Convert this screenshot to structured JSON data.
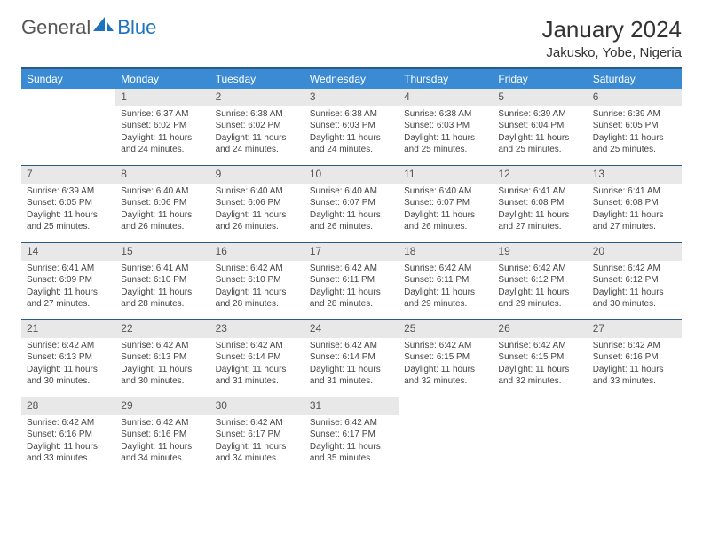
{
  "brand": {
    "p1": "General",
    "p2": "Blue"
  },
  "title": "January 2024",
  "location": "Jakusko, Yobe, Nigeria",
  "colors": {
    "header_bg": "#3b8bd4",
    "header_border": "#2a5a8a",
    "daynum_bg": "#e8e8e8",
    "text": "#333333"
  },
  "weekdays": [
    "Sunday",
    "Monday",
    "Tuesday",
    "Wednesday",
    "Thursday",
    "Friday",
    "Saturday"
  ],
  "start_offset": 1,
  "days": [
    {
      "n": 1,
      "rise": "6:37 AM",
      "set": "6:02 PM",
      "dh": 11,
      "dm": 24
    },
    {
      "n": 2,
      "rise": "6:38 AM",
      "set": "6:02 PM",
      "dh": 11,
      "dm": 24
    },
    {
      "n": 3,
      "rise": "6:38 AM",
      "set": "6:03 PM",
      "dh": 11,
      "dm": 24
    },
    {
      "n": 4,
      "rise": "6:38 AM",
      "set": "6:03 PM",
      "dh": 11,
      "dm": 25
    },
    {
      "n": 5,
      "rise": "6:39 AM",
      "set": "6:04 PM",
      "dh": 11,
      "dm": 25
    },
    {
      "n": 6,
      "rise": "6:39 AM",
      "set": "6:05 PM",
      "dh": 11,
      "dm": 25
    },
    {
      "n": 7,
      "rise": "6:39 AM",
      "set": "6:05 PM",
      "dh": 11,
      "dm": 25
    },
    {
      "n": 8,
      "rise": "6:40 AM",
      "set": "6:06 PM",
      "dh": 11,
      "dm": 26
    },
    {
      "n": 9,
      "rise": "6:40 AM",
      "set": "6:06 PM",
      "dh": 11,
      "dm": 26
    },
    {
      "n": 10,
      "rise": "6:40 AM",
      "set": "6:07 PM",
      "dh": 11,
      "dm": 26
    },
    {
      "n": 11,
      "rise": "6:40 AM",
      "set": "6:07 PM",
      "dh": 11,
      "dm": 26
    },
    {
      "n": 12,
      "rise": "6:41 AM",
      "set": "6:08 PM",
      "dh": 11,
      "dm": 27
    },
    {
      "n": 13,
      "rise": "6:41 AM",
      "set": "6:08 PM",
      "dh": 11,
      "dm": 27
    },
    {
      "n": 14,
      "rise": "6:41 AM",
      "set": "6:09 PM",
      "dh": 11,
      "dm": 27
    },
    {
      "n": 15,
      "rise": "6:41 AM",
      "set": "6:10 PM",
      "dh": 11,
      "dm": 28
    },
    {
      "n": 16,
      "rise": "6:42 AM",
      "set": "6:10 PM",
      "dh": 11,
      "dm": 28
    },
    {
      "n": 17,
      "rise": "6:42 AM",
      "set": "6:11 PM",
      "dh": 11,
      "dm": 28
    },
    {
      "n": 18,
      "rise": "6:42 AM",
      "set": "6:11 PM",
      "dh": 11,
      "dm": 29
    },
    {
      "n": 19,
      "rise": "6:42 AM",
      "set": "6:12 PM",
      "dh": 11,
      "dm": 29
    },
    {
      "n": 20,
      "rise": "6:42 AM",
      "set": "6:12 PM",
      "dh": 11,
      "dm": 30
    },
    {
      "n": 21,
      "rise": "6:42 AM",
      "set": "6:13 PM",
      "dh": 11,
      "dm": 30
    },
    {
      "n": 22,
      "rise": "6:42 AM",
      "set": "6:13 PM",
      "dh": 11,
      "dm": 30
    },
    {
      "n": 23,
      "rise": "6:42 AM",
      "set": "6:14 PM",
      "dh": 11,
      "dm": 31
    },
    {
      "n": 24,
      "rise": "6:42 AM",
      "set": "6:14 PM",
      "dh": 11,
      "dm": 31
    },
    {
      "n": 25,
      "rise": "6:42 AM",
      "set": "6:15 PM",
      "dh": 11,
      "dm": 32
    },
    {
      "n": 26,
      "rise": "6:42 AM",
      "set": "6:15 PM",
      "dh": 11,
      "dm": 32
    },
    {
      "n": 27,
      "rise": "6:42 AM",
      "set": "6:16 PM",
      "dh": 11,
      "dm": 33
    },
    {
      "n": 28,
      "rise": "6:42 AM",
      "set": "6:16 PM",
      "dh": 11,
      "dm": 33
    },
    {
      "n": 29,
      "rise": "6:42 AM",
      "set": "6:16 PM",
      "dh": 11,
      "dm": 34
    },
    {
      "n": 30,
      "rise": "6:42 AM",
      "set": "6:17 PM",
      "dh": 11,
      "dm": 34
    },
    {
      "n": 31,
      "rise": "6:42 AM",
      "set": "6:17 PM",
      "dh": 11,
      "dm": 35
    }
  ],
  "labels": {
    "sunrise": "Sunrise:",
    "sunset": "Sunset:",
    "daylight_prefix": "Daylight:",
    "hours_word": "hours",
    "and_word": "and",
    "minutes_word": "minutes."
  }
}
